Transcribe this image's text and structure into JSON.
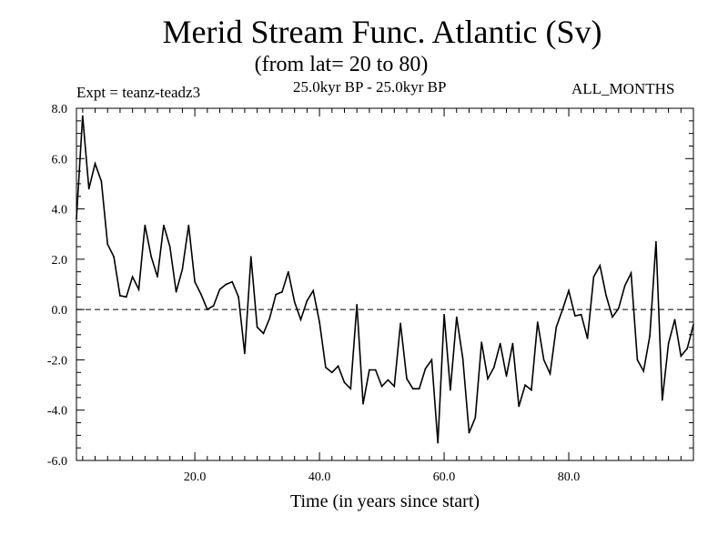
{
  "header": {
    "title": "Merid Stream Func. Atlantic (Sv)",
    "subtitle": "(from lat= 20 to 80)",
    "expt": "Expt = teanz-teadz3",
    "period": "25.0kyr BP - 25.0kyr BP",
    "months": "ALL_MONTHS"
  },
  "chart_data": {
    "type": "line",
    "title": "Merid Stream Func. Atlantic (Sv)",
    "xlabel": "Time (in years since start)",
    "ylabel": "",
    "xlim": [
      1,
      100
    ],
    "ylim": [
      -6.0,
      8.0
    ],
    "x_ticks": [
      20,
      40,
      60,
      80
    ],
    "x_tick_labels": [
      "20.0",
      "40.0",
      "60.0",
      "80.0"
    ],
    "y_ticks": [
      8,
      6,
      4,
      2,
      0,
      -2,
      -4,
      -6
    ],
    "y_tick_labels": [
      "8.0",
      "6.0",
      "4.0",
      "2.0",
      "0.0",
      "-2.0",
      "-4.0",
      "-6.0"
    ],
    "zero_line": "dashed",
    "series": [
      {
        "name": "Merid Stream Func.",
        "x": [
          1,
          2,
          3,
          4,
          5,
          6,
          7,
          8,
          9,
          10,
          11,
          12,
          13,
          14,
          15,
          16,
          17,
          18,
          19,
          20,
          21,
          22,
          23,
          24,
          25,
          26,
          27,
          28,
          29,
          30,
          31,
          32,
          33,
          34,
          35,
          36,
          37,
          38,
          39,
          40,
          41,
          42,
          43,
          44,
          45,
          46,
          47,
          48,
          49,
          50,
          51,
          52,
          53,
          54,
          55,
          56,
          57,
          58,
          59,
          60,
          61,
          62,
          63,
          64,
          65,
          66,
          67,
          68,
          69,
          70,
          71,
          72,
          73,
          74,
          75,
          76,
          77,
          78,
          79,
          80,
          81,
          82,
          83,
          84,
          85,
          86,
          87,
          88,
          89,
          90,
          91,
          92,
          93,
          94,
          95,
          96,
          97,
          98,
          99,
          100
        ],
        "values": [
          3.6,
          7.7,
          4.8,
          5.8,
          5.1,
          2.6,
          2.1,
          0.55,
          0.5,
          1.3,
          0.8,
          3.35,
          2.1,
          1.3,
          3.35,
          2.5,
          0.7,
          1.6,
          3.35,
          1.1,
          0.6,
          0.0,
          0.15,
          0.8,
          1.0,
          1.1,
          0.5,
          -1.75,
          2.1,
          -0.7,
          -0.95,
          -0.35,
          0.6,
          0.7,
          1.5,
          0.3,
          -0.4,
          0.35,
          0.75,
          -0.5,
          -2.3,
          -2.5,
          -2.25,
          -2.9,
          -3.15,
          0.2,
          -3.75,
          -2.4,
          -2.4,
          -3.05,
          -2.8,
          -3.05,
          -0.55,
          -2.75,
          -3.15,
          -3.15,
          -2.35,
          -2.0,
          -5.3,
          -0.2,
          -3.2,
          -0.3,
          -1.95,
          -4.9,
          -4.3,
          -1.3,
          -2.75,
          -2.3,
          -1.35,
          -2.65,
          -1.35,
          -3.85,
          -3.0,
          -3.2,
          -0.5,
          -2.0,
          -2.55,
          -0.7,
          0.0,
          0.75,
          -0.25,
          -0.2,
          -1.15,
          1.3,
          1.75,
          0.55,
          -0.3,
          0.05,
          0.95,
          1.45,
          -2.0,
          -2.45,
          -1.05,
          2.7,
          -3.6,
          -1.35,
          -0.4,
          -1.85,
          -1.55,
          -0.6
        ]
      }
    ]
  }
}
